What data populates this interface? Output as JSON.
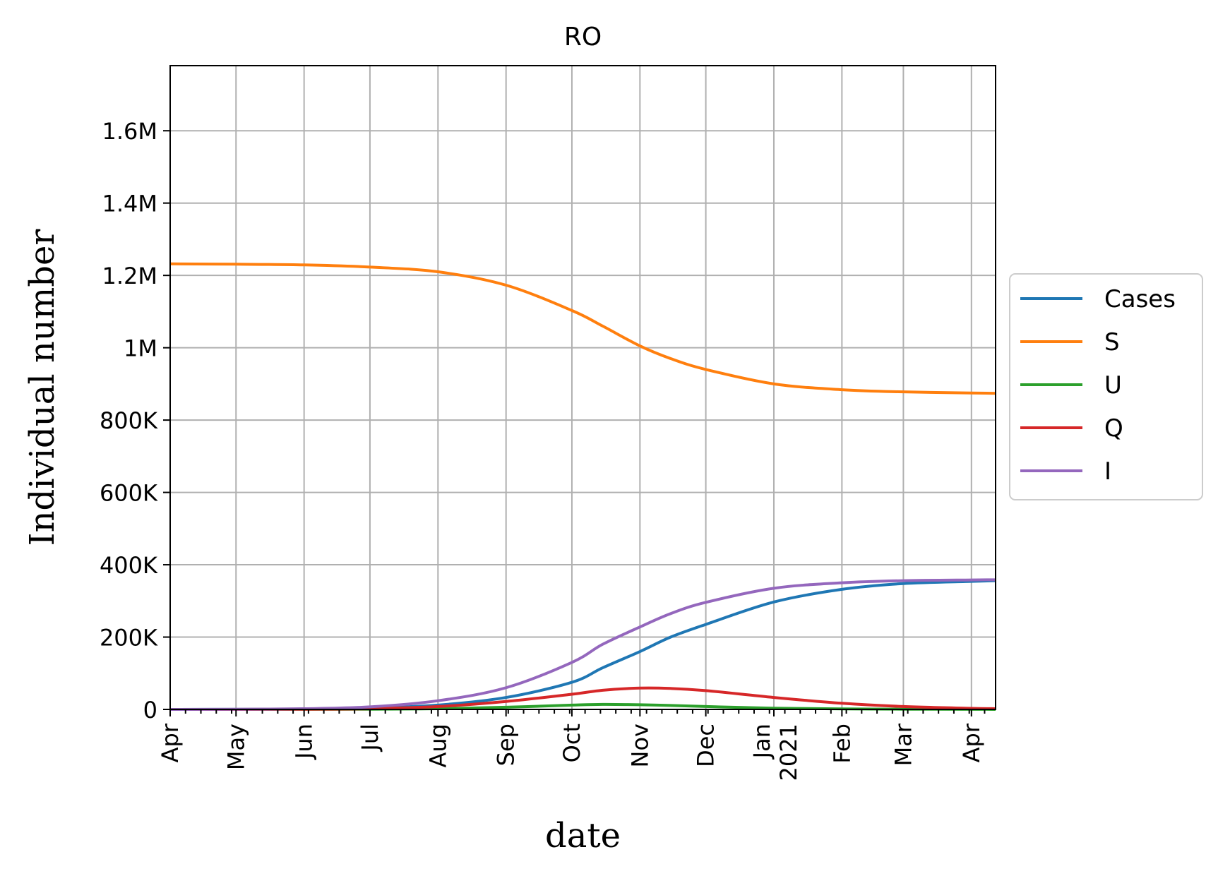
{
  "chart_data": {
    "type": "line",
    "title": "RO",
    "xlabel": "date",
    "ylabel": "Individual number",
    "x_type": "date",
    "xlim": [
      "2020-04-01",
      "2021-04-12"
    ],
    "ylim": [
      0,
      1780000
    ],
    "grid": true,
    "legend_position": "center-right-outside",
    "x_ticks": [
      {
        "date": "2020-04-01",
        "label": "Apr"
      },
      {
        "date": "2020-05-01",
        "label": "May"
      },
      {
        "date": "2020-06-01",
        "label": "Jun"
      },
      {
        "date": "2020-07-01",
        "label": "Jul"
      },
      {
        "date": "2020-08-01",
        "label": "Aug"
      },
      {
        "date": "2020-09-01",
        "label": "Sep"
      },
      {
        "date": "2020-10-01",
        "label": "Oct"
      },
      {
        "date": "2020-11-01",
        "label": "Nov"
      },
      {
        "date": "2020-12-01",
        "label": "Dec"
      },
      {
        "date": "2021-01-01",
        "label": "Jan",
        "label2": "2021"
      },
      {
        "date": "2021-02-01",
        "label": "Feb"
      },
      {
        "date": "2021-03-01",
        "label": "Mar"
      },
      {
        "date": "2021-04-01",
        "label": "Apr"
      }
    ],
    "y_ticks": [
      {
        "value": 0,
        "label": "0"
      },
      {
        "value": 200000,
        "label": "200K"
      },
      {
        "value": 400000,
        "label": "400K"
      },
      {
        "value": 600000,
        "label": "600K"
      },
      {
        "value": 800000,
        "label": "800K"
      },
      {
        "value": 1000000,
        "label": "1M"
      },
      {
        "value": 1200000,
        "label": "1.2M"
      },
      {
        "value": 1400000,
        "label": "1.4M"
      },
      {
        "value": 1600000,
        "label": "1.6M"
      }
    ],
    "x": [
      "2020-04-01",
      "2020-05-01",
      "2020-06-01",
      "2020-07-01",
      "2020-08-01",
      "2020-09-01",
      "2020-10-01",
      "2020-10-15",
      "2020-11-01",
      "2020-11-15",
      "2020-12-01",
      "2021-01-01",
      "2021-02-01",
      "2021-03-01",
      "2021-04-01",
      "2021-04-12"
    ],
    "series": [
      {
        "name": "Cases",
        "color": "#1f77b4",
        "values": [
          0,
          300,
          1200,
          4000,
          12000,
          33000,
          75000,
          115000,
          160000,
          200000,
          235000,
          297000,
          332000,
          348000,
          354000,
          356000
        ]
      },
      {
        "name": "S",
        "color": "#ff7f0e",
        "values": [
          1232000,
          1231000,
          1229000,
          1223000,
          1210000,
          1173000,
          1103000,
          1060000,
          1005000,
          970000,
          940000,
          900000,
          884000,
          878000,
          875000,
          874000
        ]
      },
      {
        "name": "U",
        "color": "#2ca02c",
        "values": [
          0,
          50,
          200,
          600,
          2000,
          6000,
          12000,
          14000,
          13000,
          11000,
          8000,
          3500,
          1500,
          600,
          200,
          100
        ]
      },
      {
        "name": "Q",
        "color": "#d62728",
        "values": [
          0,
          100,
          600,
          2000,
          8000,
          22000,
          42000,
          53000,
          59000,
          58000,
          52000,
          33000,
          17000,
          8000,
          3000,
          2000
        ]
      },
      {
        "name": "I",
        "color": "#9467bd",
        "values": [
          0,
          500,
          2000,
          7000,
          24000,
          60000,
          130000,
          180000,
          228000,
          265000,
          296000,
          335000,
          350000,
          356000,
          358000,
          358500
        ]
      }
    ]
  }
}
